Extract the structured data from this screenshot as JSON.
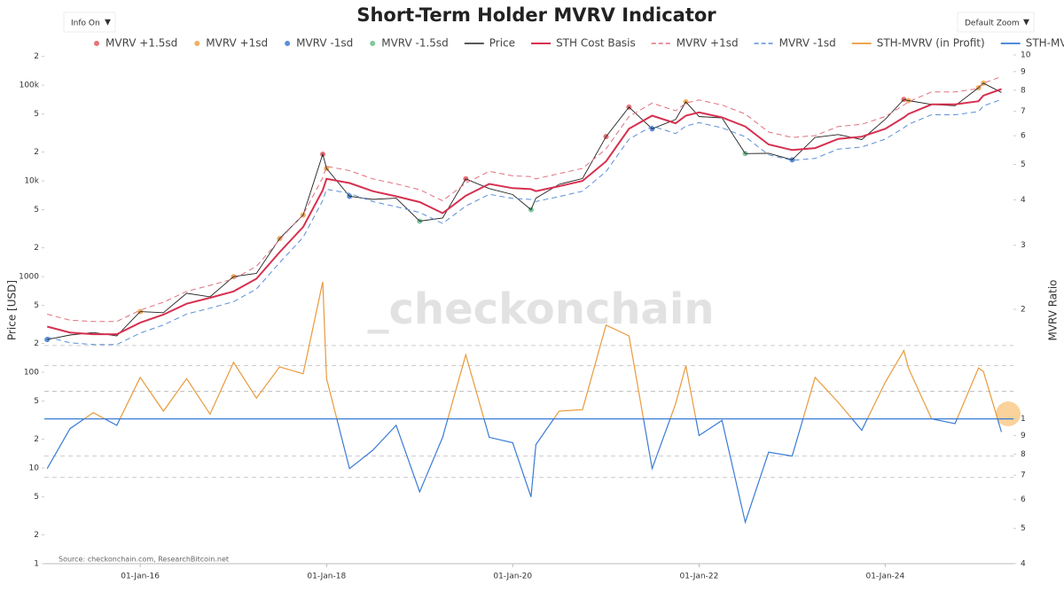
{
  "controls": {
    "info": "Info On",
    "zoom": "Default Zoom"
  },
  "chart_data": {
    "type": "line",
    "title": "Short-Term Holder MVRV Indicator",
    "y_label": "Price [USD]",
    "y2_label": "MVRV Ratio",
    "watermark": "_checkonchain",
    "source": "Source: checkonchain.com, ResearchBitcoin.net",
    "ylog": true,
    "y2log": true,
    "xlim": [
      "2014-12-21",
      "2025-05-18"
    ],
    "xticks": [
      {
        "value": "2016-01-01",
        "label": "01-Jan-16"
      },
      {
        "value": "2018-01-01",
        "label": "01-Jan-18"
      },
      {
        "value": "2020-01-01",
        "label": "01-Jan-20"
      },
      {
        "value": "2022-01-01",
        "label": "01-Jan-22"
      },
      {
        "value": "2024-01-01",
        "label": "01-Jan-24"
      }
    ],
    "ylim": [
      1,
      207000
    ],
    "yticks": [
      1,
      2,
      5,
      10,
      {
        "value": 20,
        "label": "2"
      },
      {
        "value": 50,
        "label": "5"
      },
      100,
      {
        "value": 200,
        "label": "2"
      },
      {
        "value": 500,
        "label": "5"
      },
      1000,
      {
        "value": 2000,
        "label": "2"
      },
      {
        "value": 5000,
        "label": "5"
      },
      {
        "value": 10000,
        "label": "10k"
      },
      {
        "value": 20000,
        "label": "2"
      },
      {
        "value": 50000,
        "label": "5"
      },
      {
        "value": 100000,
        "label": "100k"
      },
      {
        "value": 200000,
        "label": "2"
      }
    ],
    "y2lim": [
      0.4,
      10
    ],
    "y2ticks": [
      {
        "value": 0.4,
        "label": "4"
      },
      {
        "value": 0.5,
        "label": "5"
      },
      {
        "value": 0.6,
        "label": "6"
      },
      {
        "value": 0.7,
        "label": "7"
      },
      {
        "value": 0.8,
        "label": "8"
      },
      {
        "value": 0.9,
        "label": "9"
      },
      1,
      2,
      3,
      4,
      5,
      6,
      7,
      8,
      9,
      10
    ],
    "y2_baseline": 1,
    "y2_reference_lines": [
      1.59,
      1.4,
      1.19,
      0.79,
      0.69
    ],
    "x": [
      "2015-01-01",
      "2015-04-01",
      "2015-07-01",
      "2015-10-01",
      "2016-01-01",
      "2016-04-01",
      "2016-07-01",
      "2016-10-01",
      "2017-01-01",
      "2017-04-01",
      "2017-07-01",
      "2017-10-01",
      "2017-12-17",
      "2018-01-01",
      "2018-04-01",
      "2018-07-01",
      "2018-10-01",
      "2019-01-01",
      "2019-04-01",
      "2019-07-01",
      "2019-10-01",
      "2020-01-01",
      "2020-03-13",
      "2020-04-01",
      "2020-07-01",
      "2020-10-01",
      "2021-01-01",
      "2021-04-01",
      "2021-07-01",
      "2021-10-01",
      "2021-11-10",
      "2022-01-01",
      "2022-04-01",
      "2022-07-01",
      "2022-10-01",
      "2023-01-01",
      "2023-04-01",
      "2023-07-01",
      "2023-10-01",
      "2024-01-01",
      "2024-03-14",
      "2024-04-01",
      "2024-07-01",
      "2024-10-01",
      "2025-01-01",
      "2025-01-20",
      "2025-04-01"
    ],
    "series": [
      {
        "name": "MVRV +1.5sd",
        "color": "#e8727a",
        "style": "marker",
        "x": [
          "2017-12-17",
          "2019-07-01",
          "2021-01-01",
          "2021-04-01",
          "2024-03-14"
        ],
        "values": [
          19000,
          10500,
          29000,
          59000,
          71000
        ]
      },
      {
        "name": "MVRV +1sd",
        "color": "#f0b060",
        "style": "marker",
        "x": [
          "2016-01-01",
          "2017-01-01",
          "2017-07-01",
          "2017-10-01",
          "2018-01-01",
          "2021-11-10",
          "2024-04-01",
          "2025-01-01",
          "2025-01-20"
        ],
        "values": [
          430,
          1000,
          2500,
          4400,
          13500,
          67000,
          69000,
          94000,
          105000
        ]
      },
      {
        "name": "MVRV -1sd",
        "color": "#5b8fd6",
        "style": "marker",
        "x": [
          "2015-01-01",
          "2018-04-01",
          "2021-07-01",
          "2023-01-01"
        ],
        "values": [
          220,
          6900,
          35000,
          16600
        ]
      },
      {
        "name": "MVRV -1.5sd",
        "color": "#7fc9a0",
        "style": "marker",
        "x": [
          "2019-01-01",
          "2020-03-13",
          "2022-07-01"
        ],
        "values": [
          3800,
          5000,
          19300
        ]
      },
      {
        "name": "Price",
        "color": "#222222",
        "style": "line",
        "width": 0.9,
        "values": [
          220,
          245,
          260,
          240,
          430,
          420,
          670,
          615,
          1000,
          1080,
          2500,
          4400,
          19000,
          13500,
          6900,
          6400,
          6600,
          3800,
          4100,
          10500,
          8300,
          7200,
          5000,
          6600,
          9200,
          10600,
          29000,
          59000,
          35000,
          43800,
          67000,
          47000,
          45500,
          19300,
          19400,
          16600,
          28500,
          30500,
          27000,
          44000,
          71000,
          69000,
          63000,
          61000,
          94000,
          105000,
          84000
        ]
      },
      {
        "name": "STH Cost Basis",
        "color": "#d6304f",
        "style": "line",
        "width": 2,
        "values": [
          300,
          260,
          250,
          250,
          330,
          400,
          520,
          600,
          700,
          950,
          1800,
          3300,
          8000,
          10500,
          9500,
          7800,
          6900,
          6000,
          4600,
          7000,
          9300,
          8400,
          8200,
          7800,
          8800,
          10000,
          16000,
          35000,
          48000,
          40000,
          48000,
          52000,
          46000,
          37000,
          24000,
          21000,
          22000,
          27500,
          29000,
          35000,
          46000,
          50000,
          63000,
          63000,
          68000,
          78000,
          91000
        ]
      },
      {
        "name": "MVRV +1sd",
        "color": "#e0707e",
        "style": "dashed",
        "width": 1,
        "values": [
          405,
          350,
          340,
          340,
          445,
          540,
          700,
          810,
          945,
          1280,
          2430,
          4460,
          10800,
          14200,
          12800,
          10500,
          9300,
          8100,
          6200,
          9450,
          12600,
          11300,
          11100,
          10500,
          11900,
          13500,
          21600,
          47000,
          65000,
          54000,
          65000,
          70000,
          62000,
          50000,
          32400,
          28400,
          29700,
          37000,
          39000,
          47000,
          62000,
          67000,
          85000,
          85000,
          92000,
          105000,
          123000
        ]
      },
      {
        "name": "MVRV -1sd",
        "color": "#5b8fd6",
        "style": "dashed",
        "width": 1,
        "values": [
          234,
          203,
          195,
          195,
          257,
          312,
          406,
          468,
          546,
          741,
          1400,
          2570,
          6240,
          8190,
          7410,
          6080,
          5380,
          4680,
          3590,
          5460,
          7250,
          6550,
          6400,
          6080,
          6860,
          7800,
          12500,
          27300,
          37400,
          31200,
          37400,
          40600,
          35900,
          28900,
          18700,
          16400,
          17200,
          21500,
          22600,
          27300,
          35900,
          39000,
          49100,
          49100,
          53000,
          60800,
          71000
        ]
      },
      {
        "name": "STH-MVRV (in Profit)",
        "color": "#e89a3c",
        "style": "line",
        "width": 1.2,
        "axis": "y2",
        "clip": "above",
        "values": [
          0.73,
          0.94,
          1.04,
          0.96,
          1.3,
          1.05,
          1.29,
          1.03,
          1.43,
          1.14,
          1.39,
          1.33,
          2.38,
          1.29,
          0.73,
          0.82,
          0.96,
          0.63,
          0.89,
          1.5,
          0.89,
          0.86,
          0.61,
          0.85,
          1.05,
          1.06,
          1.81,
          1.69,
          0.73,
          1.1,
          1.4,
          0.9,
          0.99,
          0.52,
          0.81,
          0.79,
          1.3,
          1.11,
          0.93,
          1.26,
          1.54,
          1.38,
          1.0,
          0.97,
          1.38,
          1.35,
          0.92
        ]
      },
      {
        "name": "STH-MVRV (in Loss)",
        "color": "#3a7bd5",
        "style": "line",
        "width": 1.2,
        "axis": "y2",
        "clip": "below",
        "values": [
          0.73,
          0.94,
          1.04,
          0.96,
          1.3,
          1.05,
          1.29,
          1.03,
          1.43,
          1.14,
          1.39,
          1.33,
          2.38,
          1.29,
          0.73,
          0.82,
          0.96,
          0.63,
          0.89,
          1.5,
          0.89,
          0.86,
          0.61,
          0.85,
          1.05,
          1.06,
          1.81,
          1.69,
          0.73,
          1.1,
          1.4,
          0.9,
          0.99,
          0.52,
          0.81,
          0.79,
          1.3,
          1.11,
          0.93,
          1.26,
          1.54,
          1.38,
          1.0,
          0.97,
          1.38,
          1.35,
          0.92
        ]
      }
    ]
  }
}
